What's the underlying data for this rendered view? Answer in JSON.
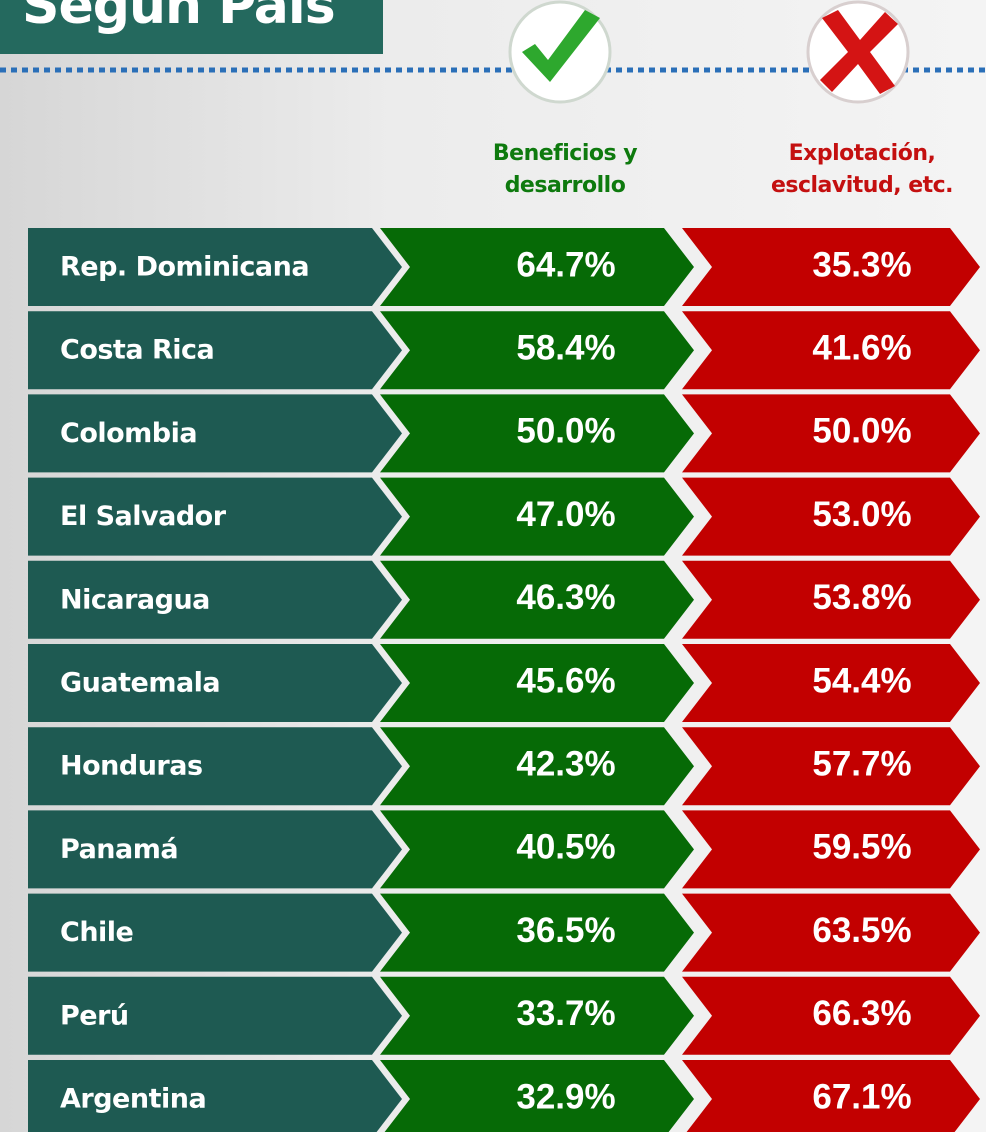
{
  "header": {
    "title": "Según País"
  },
  "columns": [
    "Beneficios y desarrollo",
    "Explotación, esclavitud, etc."
  ],
  "rows": [
    [
      "Rep. Dominicana",
      "64.7%",
      "35.3%"
    ],
    [
      "Costa Rica",
      "58.4%",
      "41.6%"
    ],
    [
      "Colombia",
      "50.0%",
      "50.0%"
    ],
    [
      "El Salvador",
      "47.0%",
      "53.0%"
    ],
    [
      "Nicaragua",
      "46.3%",
      "53.8%"
    ],
    [
      "Guatemala",
      "45.6%",
      "54.4%"
    ],
    [
      "Honduras",
      "42.3%",
      "57.7%"
    ],
    [
      "Panamá",
      "40.5%",
      "59.5%"
    ],
    [
      "Chile",
      "36.5%",
      "63.5%"
    ],
    [
      "Perú",
      "33.7%",
      "66.3%"
    ],
    [
      "Argentina",
      "32.9%",
      "67.1%"
    ]
  ]
}
